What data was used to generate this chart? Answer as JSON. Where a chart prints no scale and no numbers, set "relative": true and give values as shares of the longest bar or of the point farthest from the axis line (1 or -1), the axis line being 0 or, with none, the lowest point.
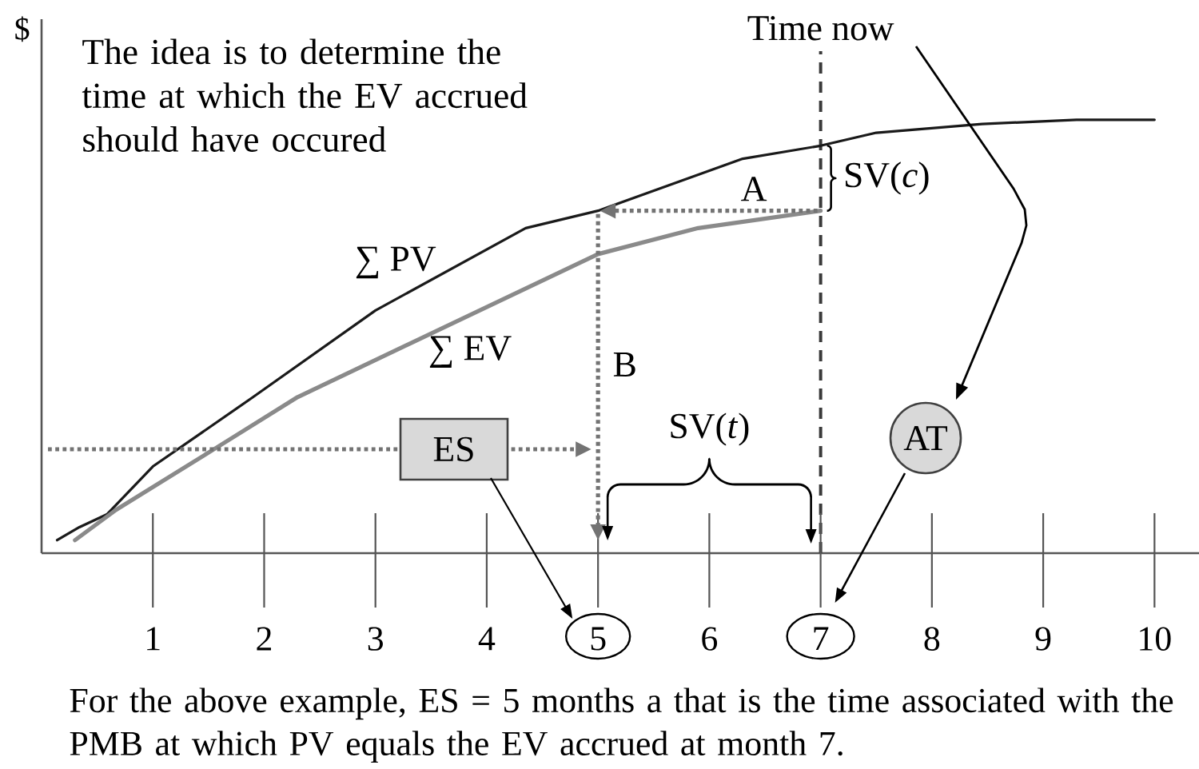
{
  "chart_data": {
    "type": "line",
    "ylabel": "$",
    "relative": true,
    "xlim": [
      0,
      10.4
    ],
    "xticks": [
      1,
      2,
      3,
      4,
      5,
      6,
      7,
      8,
      9,
      10
    ],
    "series": [
      {
        "name": "∑ PV",
        "color": "#1a1a1a",
        "x": [
          0.14,
          0.34,
          0.59,
          1.0,
          1.9,
          3.0,
          4.35,
          5.0,
          6.3,
          7.0,
          7.5,
          8.45,
          9.3,
          10.0
        ],
        "values": [
          0.03,
          0.06,
          0.09,
          0.2,
          0.36,
          0.56,
          0.75,
          0.79,
          0.91,
          0.94,
          0.97,
          0.99,
          1.0,
          1.0
        ]
      },
      {
        "name": "∑ EV",
        "color": "#8a8a8a",
        "x": [
          0.3,
          0.67,
          1.55,
          2.3,
          5.0,
          5.9,
          7.0
        ],
        "values": [
          0.03,
          0.1,
          0.24,
          0.36,
          0.69,
          0.75,
          0.79
        ]
      }
    ],
    "ref_lines": [
      {
        "axis": "x",
        "value": 7,
        "label": "Time now",
        "color": "#3a3a3a",
        "line_style": "dashed"
      }
    ],
    "annotations": [
      "The idea is to determine the time at which the EV accrued should have occured",
      {
        "text": "A",
        "x": 6.4,
        "y": 0.79
      },
      "B",
      "SV(*c*)",
      "SV(*t*)",
      "ES",
      "AT",
      "For the above example, ES = 5 months a that is the time associated with the PMB at which PV equals the EV accrued at month 7."
    ]
  }
}
